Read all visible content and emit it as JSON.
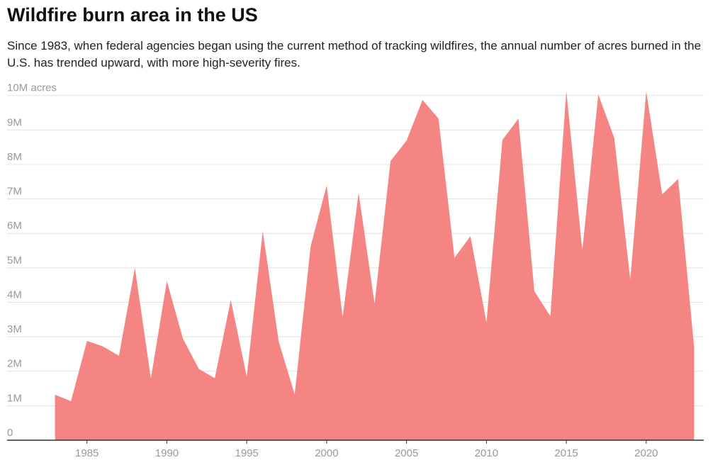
{
  "chart_data": {
    "type": "area",
    "title": "Wildfire burn area in the US",
    "subtitle": "Since 1983, when federal agencies began using the current method of tracking wildfires, the annual number of acres burned in the U.S. has trended upward, with more high-severity fires.",
    "color": "#f58582",
    "grid": true,
    "x": [
      1983,
      1984,
      1985,
      1986,
      1987,
      1988,
      1989,
      1990,
      1991,
      1992,
      1993,
      1994,
      1995,
      1996,
      1997,
      1998,
      1999,
      2000,
      2001,
      2002,
      2003,
      2004,
      2005,
      2006,
      2007,
      2008,
      2009,
      2010,
      2011,
      2012,
      2013,
      2014,
      2015,
      2016,
      2017,
      2018,
      2019,
      2020,
      2021,
      2022,
      2023
    ],
    "values": [
      1320000,
      1130000,
      2880000,
      2720000,
      2450000,
      5000000,
      1790000,
      4620000,
      2950000,
      2070000,
      1800000,
      4070000,
      1840000,
      6070000,
      2860000,
      1330000,
      5630000,
      7390000,
      3570000,
      7180000,
      3960000,
      8100000,
      8690000,
      9870000,
      9330000,
      5290000,
      5920000,
      3420000,
      8710000,
      9330000,
      4320000,
      3600000,
      10130000,
      5510000,
      10030000,
      8770000,
      4660000,
      10120000,
      7130000,
      7580000,
      2690000
    ],
    "xlim": [
      1980,
      2023.6
    ],
    "xticks": [
      1985,
      1990,
      1995,
      2000,
      2005,
      2010,
      2015,
      2020
    ],
    "ylim": [
      0,
      10200000
    ],
    "yticks": [
      0,
      {
        "value": 1000000,
        "label": "1M"
      },
      {
        "value": 2000000,
        "label": "2M"
      },
      {
        "value": 3000000,
        "label": "3M"
      },
      {
        "value": 4000000,
        "label": "4M"
      },
      {
        "value": 5000000,
        "label": "5M"
      },
      {
        "value": 6000000,
        "label": "6M"
      },
      {
        "value": 7000000,
        "label": "7M"
      },
      {
        "value": 8000000,
        "label": "8M"
      },
      {
        "value": 9000000,
        "label": "9M"
      },
      {
        "value": 10000000,
        "label": "10M acres"
      }
    ]
  }
}
